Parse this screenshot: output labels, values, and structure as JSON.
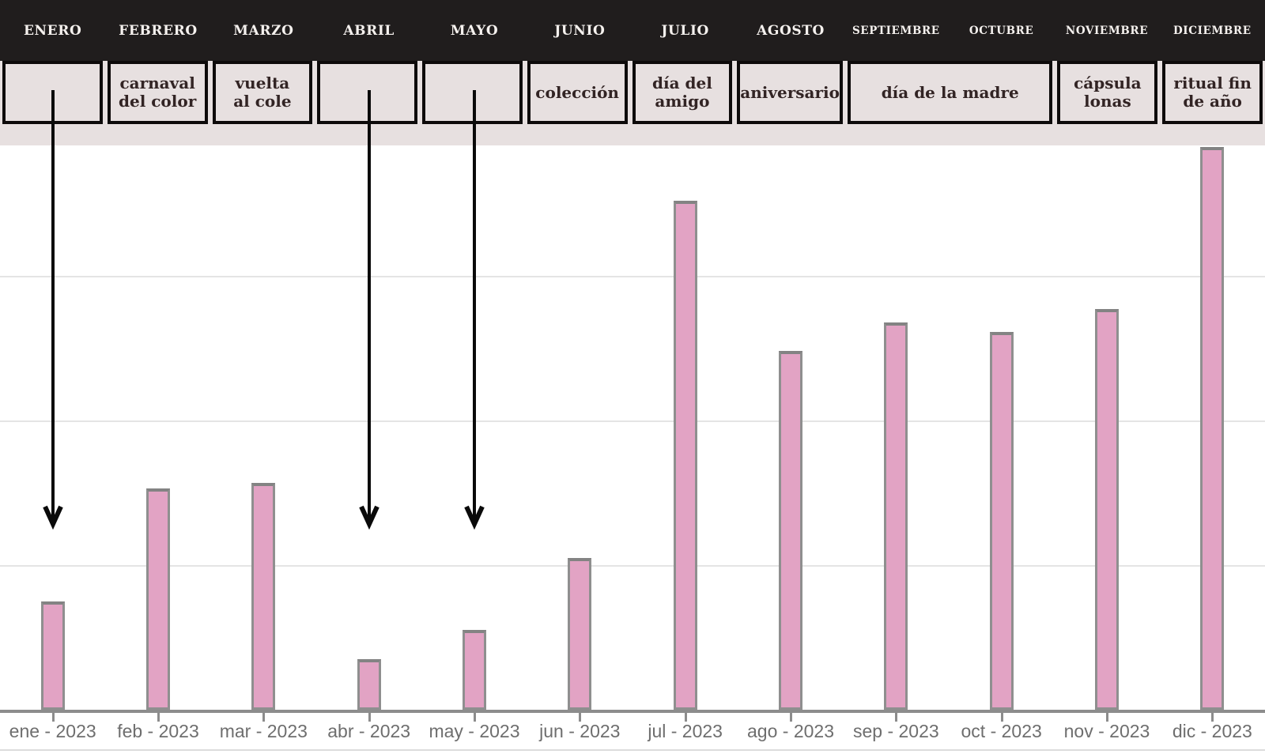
{
  "header": {
    "months": [
      "ENERO",
      "FEBRERO",
      "MARZO",
      "ABRIL",
      "MAYO",
      "JUNIO",
      "JULIO",
      "AGOSTO",
      "SEPTIEMBRE",
      "OCTUBRE",
      "NOVIEMBRE",
      "DICIEMBRE"
    ]
  },
  "campaigns": [
    {
      "label": "",
      "start_month": 0,
      "span": 1,
      "arrow": true
    },
    {
      "label": "carnaval\ndel color",
      "start_month": 1,
      "span": 1,
      "arrow": false
    },
    {
      "label": "vuelta\nal cole",
      "start_month": 2,
      "span": 1,
      "arrow": false
    },
    {
      "label": "",
      "start_month": 3,
      "span": 1,
      "arrow": true
    },
    {
      "label": "",
      "start_month": 4,
      "span": 1,
      "arrow": true
    },
    {
      "label": "colección",
      "start_month": 5,
      "span": 1,
      "arrow": false
    },
    {
      "label": "día del\namigo",
      "start_month": 6,
      "span": 1,
      "arrow": false
    },
    {
      "label": "aniversario",
      "start_month": 7,
      "span": 1,
      "arrow": false
    },
    {
      "label": "día de la madre",
      "start_month": 8,
      "span": 2,
      "arrow": false
    },
    {
      "label": "cápsula\nlonas",
      "start_month": 10,
      "span": 1,
      "arrow": false
    },
    {
      "label": "ritual fin\nde año",
      "start_month": 11,
      "span": 1,
      "arrow": false
    }
  ],
  "chart_data": {
    "type": "bar",
    "categories": [
      "ene - 2023",
      "feb - 2023",
      "mar - 2023",
      "abr - 2023",
      "may - 2023",
      "jun - 2023",
      "jul - 2023",
      "ago - 2023",
      "sep - 2023",
      "oct - 2023",
      "nov - 2023",
      "dic - 2023"
    ],
    "values": [
      75,
      153,
      157,
      35,
      55,
      105,
      352,
      248,
      268,
      261,
      277,
      389
    ],
    "title": "",
    "xlabel": "",
    "ylabel": "",
    "ylim": [
      0,
      400
    ],
    "gridlines": [
      100,
      200,
      300
    ],
    "grid": true,
    "legend": null,
    "y_axis_labeled": false,
    "value_units": "relative — no y-axis tick labels are shown; gridline interval = 100 units",
    "bar_color": "#e2a3c4",
    "bar_border_color": "#8f8f8f"
  },
  "colors": {
    "header_bg": "#201d1d",
    "header_text": "#f5f1ee",
    "cell_bg": "#e7e0e0",
    "cell_border": "#0d0a0a",
    "cell_text": "#322424",
    "plot_bg": "#ffffff",
    "gridline": "#e4e4e4",
    "axis_line": "#8c8c8c",
    "axis_label": "#6e6e6e",
    "arrow": "#0a0a0a",
    "bar_fill": "#e2a3c4",
    "bar_border": "#8f8f8f"
  }
}
